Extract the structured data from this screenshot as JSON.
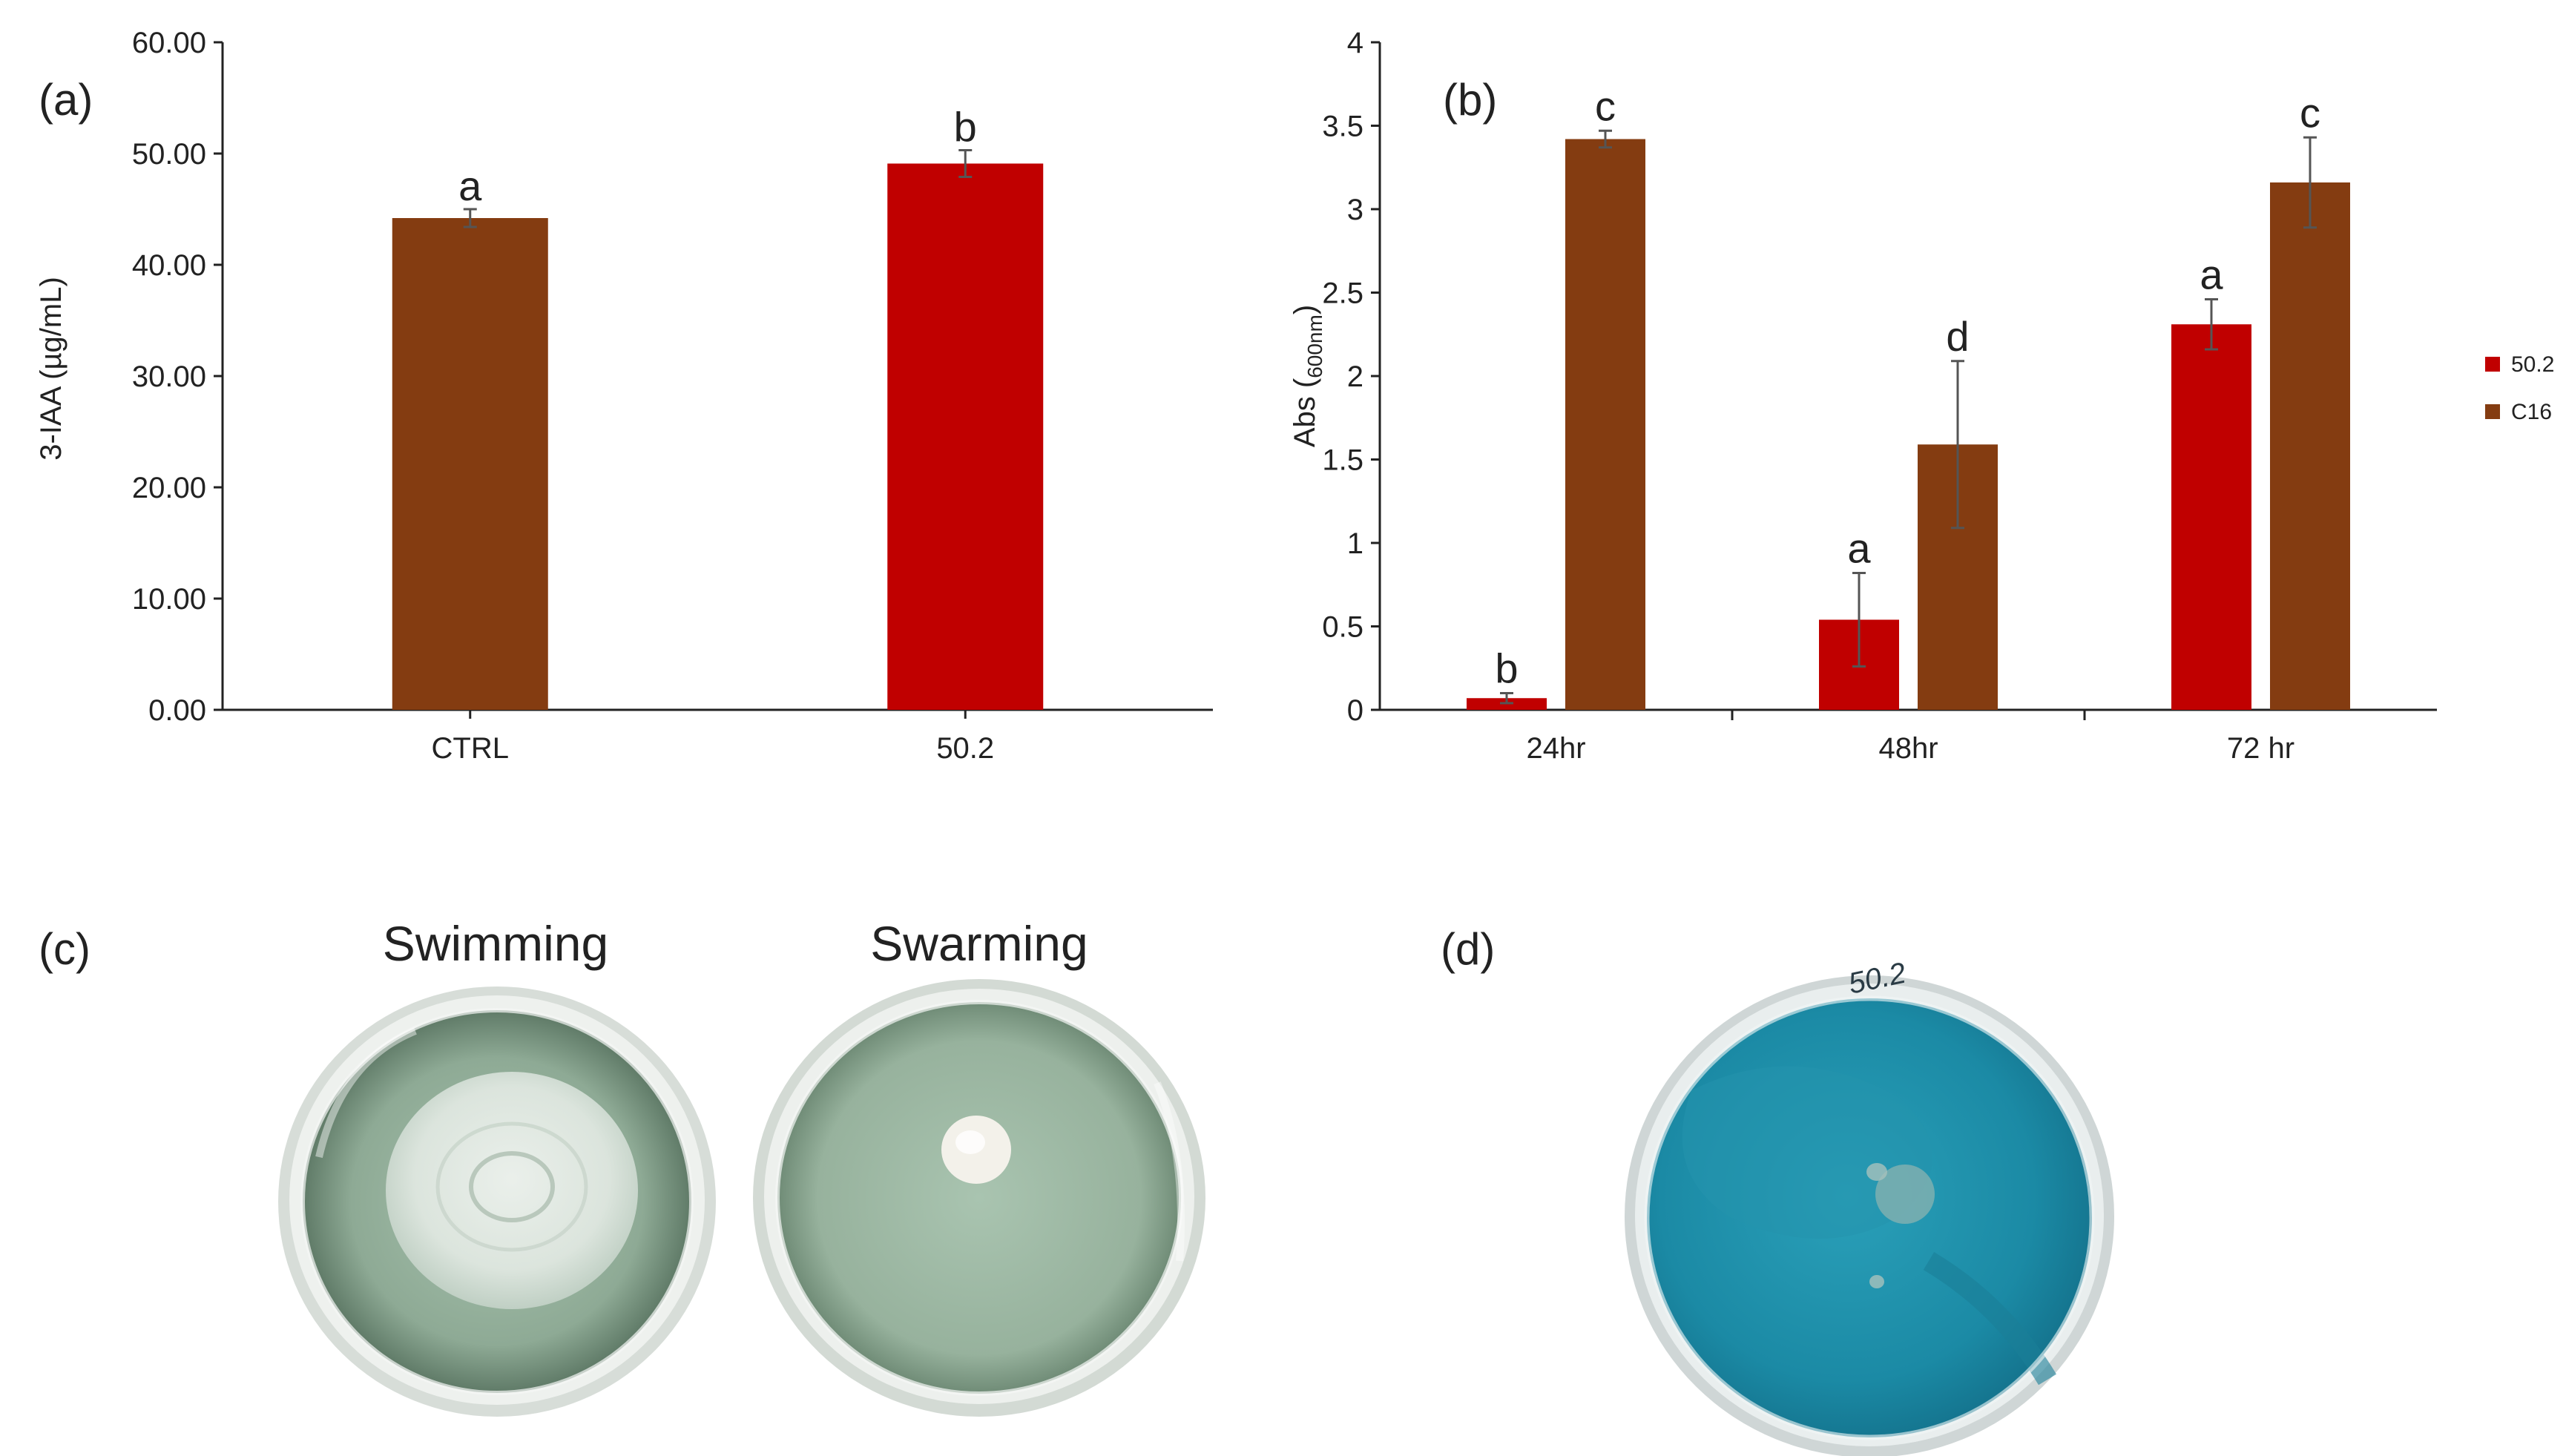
{
  "colors": {
    "red": "#c00000",
    "brown": "#843c11",
    "axis": "#222222",
    "errorbar": "#555555",
    "plate_green": "#92ad98",
    "plate_blue": "#1e8aa4"
  },
  "chart_data": [
    {
      "panel": "(a)",
      "type": "bar",
      "xlabel": "",
      "ylabel": "3-IAA (µg/mL)",
      "ylim": [
        0,
        60
      ],
      "yticks": [
        "0.00",
        "10.00",
        "20.00",
        "30.00",
        "40.00",
        "50.00",
        "60.00"
      ],
      "grid": false,
      "categories": [
        "CTRL",
        "50.2"
      ],
      "values": [
        44.2,
        49.1
      ],
      "errors": [
        0.8,
        1.2
      ],
      "significance": [
        "a",
        "b"
      ],
      "bar_colors": [
        "#843c11",
        "#c00000"
      ]
    },
    {
      "panel": "(b)",
      "type": "bar",
      "xlabel": "",
      "ylabel_main": "Abs (",
      "ylabel_sub": "600nm",
      "ylabel_end": ")",
      "ylim": [
        0,
        4
      ],
      "yticks": [
        "0",
        "0.5",
        "1",
        "1.5",
        "2",
        "2.5",
        "3",
        "3.5",
        "4"
      ],
      "grid": false,
      "legend_position": "right",
      "categories": [
        "24hr",
        "48hr",
        "72 hr"
      ],
      "series": [
        {
          "name": "50.2",
          "color": "#c00000",
          "values": [
            0.07,
            0.54,
            2.31
          ],
          "errors": [
            0.03,
            0.28,
            0.15
          ],
          "significance": [
            "b",
            "a",
            "a"
          ]
        },
        {
          "name": "C16",
          "color": "#843c11",
          "values": [
            3.42,
            1.59,
            3.16
          ],
          "errors": [
            0.05,
            0.5,
            0.27
          ],
          "significance": [
            "c",
            "d",
            "c"
          ]
        }
      ]
    }
  ],
  "photos": {
    "c": {
      "panel": "(c)",
      "left_title": "Swimming",
      "right_title": "Swarming"
    },
    "d": {
      "panel": "(d)",
      "plate_mark": "50.2"
    }
  }
}
